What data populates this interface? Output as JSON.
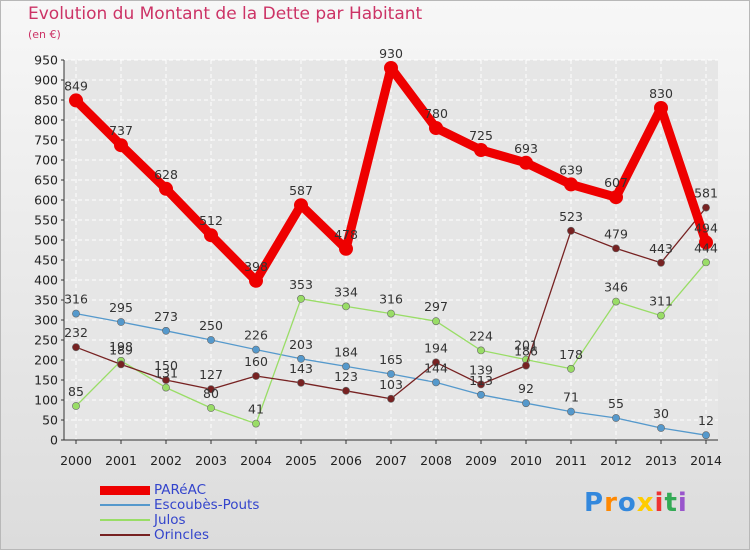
{
  "chart_data": {
    "type": "line",
    "title": "Evolution du Montant de la Dette par Habitant",
    "unit": "(en €)",
    "x": [
      "2000",
      "2001",
      "2002",
      "2003",
      "2004",
      "2005",
      "2006",
      "2007",
      "2008",
      "2009",
      "2010",
      "2011",
      "2012",
      "2013",
      "2014"
    ],
    "ylim": [
      0,
      950
    ],
    "yticks": [
      "0",
      "50",
      "100",
      "150",
      "200",
      "250",
      "300",
      "350",
      "400",
      "450",
      "500",
      "550",
      "600",
      "650",
      "700",
      "750",
      "800",
      "850",
      "900",
      "950"
    ],
    "grid": true,
    "legend_position": "bottom-left",
    "series": [
      {
        "name": "PARéAC",
        "color": "#ee0000",
        "values": [
          849,
          737,
          628,
          512,
          398,
          587,
          478,
          930,
          780,
          725,
          693,
          639,
          607,
          830,
          494
        ],
        "labels": [
          "849",
          "737",
          "628",
          "512",
          "398",
          "587",
          "478",
          "930",
          "780",
          "725",
          "693",
          "639",
          "607",
          "830",
          "494"
        ]
      },
      {
        "name": "Escoubès-Pouts",
        "color": "#5599cc",
        "values": [
          316,
          295,
          273,
          250,
          226,
          203,
          184,
          165,
          144,
          113,
          92,
          71,
          55,
          30,
          12
        ],
        "labels": [
          "316",
          "295",
          "273",
          "250",
          "226",
          "203",
          "184",
          "165",
          "144",
          "113",
          "92",
          "71",
          "55",
          "30",
          "12"
        ]
      },
      {
        "name": "Julos",
        "color": "#99dd66",
        "values": [
          85,
          198,
          131,
          80,
          41,
          353,
          334,
          316,
          297,
          224,
          201,
          178,
          346,
          311,
          444
        ],
        "labels": [
          "85",
          "198",
          "131",
          "80",
          "41",
          "353",
          "334",
          "316",
          "297",
          "224",
          "201",
          "178",
          "346",
          "311",
          "444"
        ]
      },
      {
        "name": "Orincles",
        "color": "#772222",
        "values": [
          232,
          189,
          150,
          127,
          160,
          143,
          123,
          103,
          194,
          139,
          186,
          523,
          479,
          443,
          581
        ],
        "labels": [
          "232",
          "189",
          "150",
          "127",
          "160",
          "143",
          "123",
          "103",
          "194",
          "139",
          "186",
          "523",
          "479",
          "443",
          "581"
        ]
      }
    ]
  },
  "logo": {
    "letters": [
      "P",
      "r",
      "o",
      "x",
      "i",
      "t",
      "i"
    ],
    "colors": [
      "#3388dd",
      "#ff8800",
      "#3388dd",
      "#ffcc00",
      "#ee3333",
      "#33aa55",
      "#9955cc"
    ]
  }
}
